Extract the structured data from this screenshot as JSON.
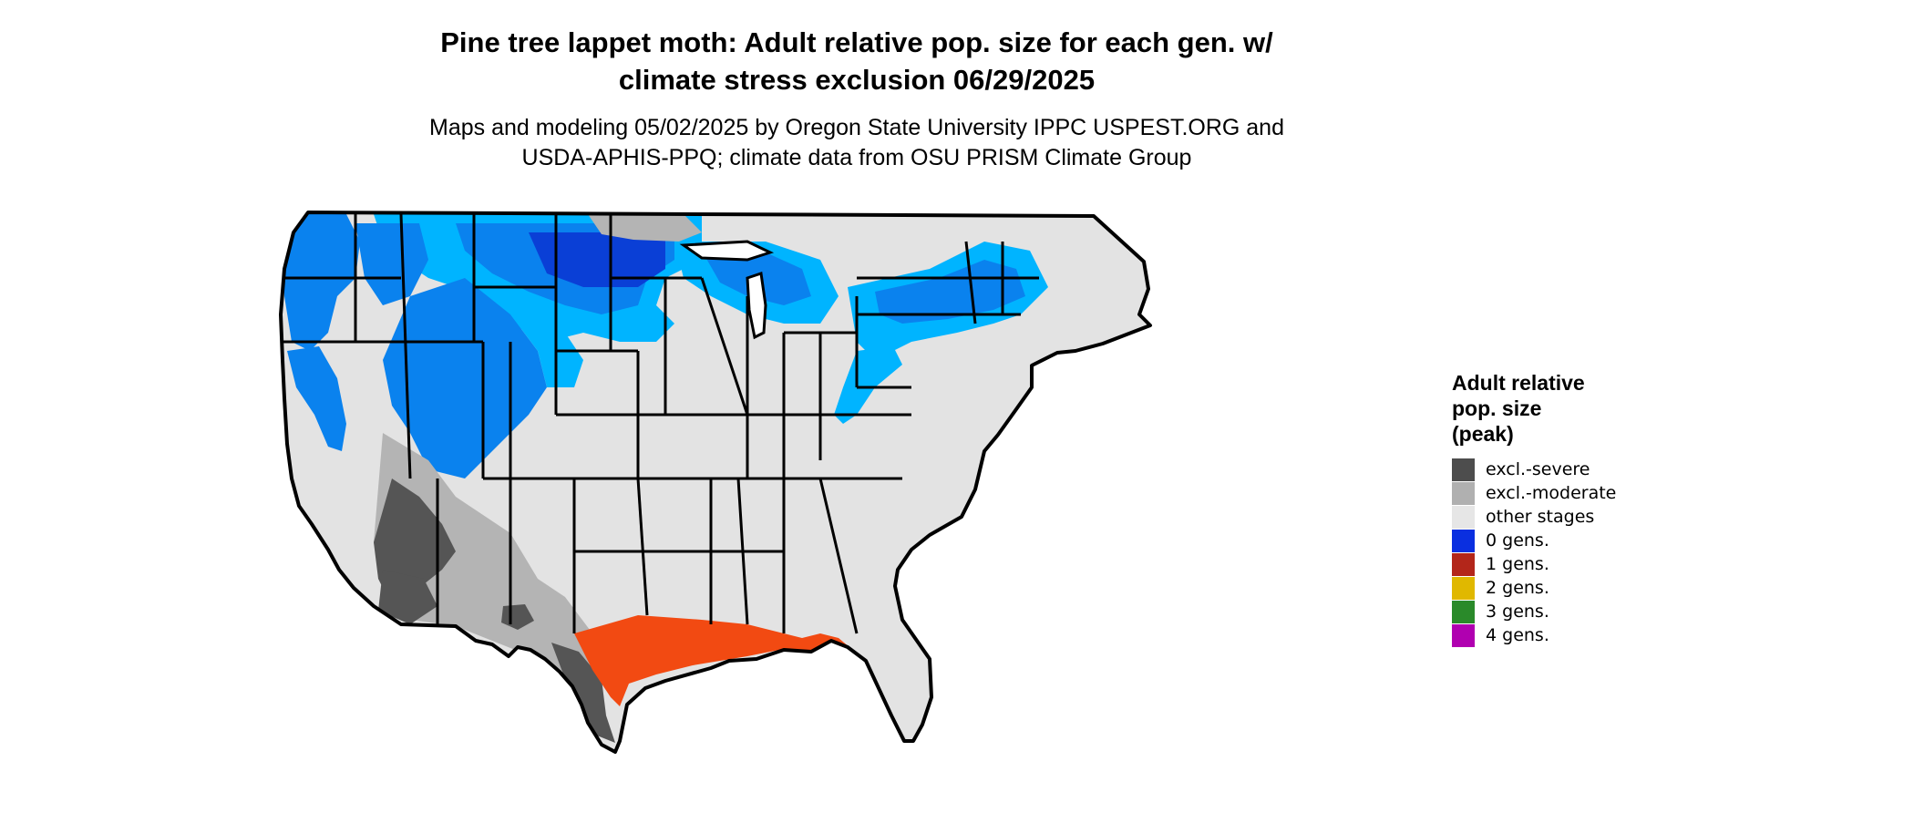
{
  "map": {
    "title_lines": [
      "Pine tree lappet moth: Adult relative pop. size for each gen. w/",
      "climate stress exclusion 06/29/2025"
    ],
    "subtitle_lines": [
      "Maps and modeling 05/02/2025 by Oregon State University IPPC USPEST.ORG and",
      "USDA-APHIS-PPQ; climate data from OSU PRISM Climate Group"
    ],
    "region": "contiguous United States",
    "colors": {
      "land": "#e3e3e3",
      "border": "#000000",
      "blue_light": "#00b4ff",
      "blue_mid": "#0a82ee",
      "blue_dark": "#0a3fd6",
      "red_orange": "#f24a12",
      "grey_light": "#b4b4b4",
      "grey_dark": "#555555"
    }
  },
  "legend": {
    "title_lines": [
      "Adult relative",
      "pop. size",
      "(peak)"
    ],
    "items": [
      {
        "label": "excl.-severe",
        "color": "#4d4d4d"
      },
      {
        "label": "excl.-moderate",
        "color": "#b0b0b0"
      },
      {
        "label": "other stages",
        "color": "#e6e6e6"
      },
      {
        "label": "0 gens.",
        "color": "#0a2fe0"
      },
      {
        "label": "1 gens.",
        "color": "#b3261a"
      },
      {
        "label": "2 gens.",
        "color": "#e0b800"
      },
      {
        "label": "3 gens.",
        "color": "#2a8a2a"
      },
      {
        "label": "4 gens.",
        "color": "#b000b0"
      }
    ]
  }
}
